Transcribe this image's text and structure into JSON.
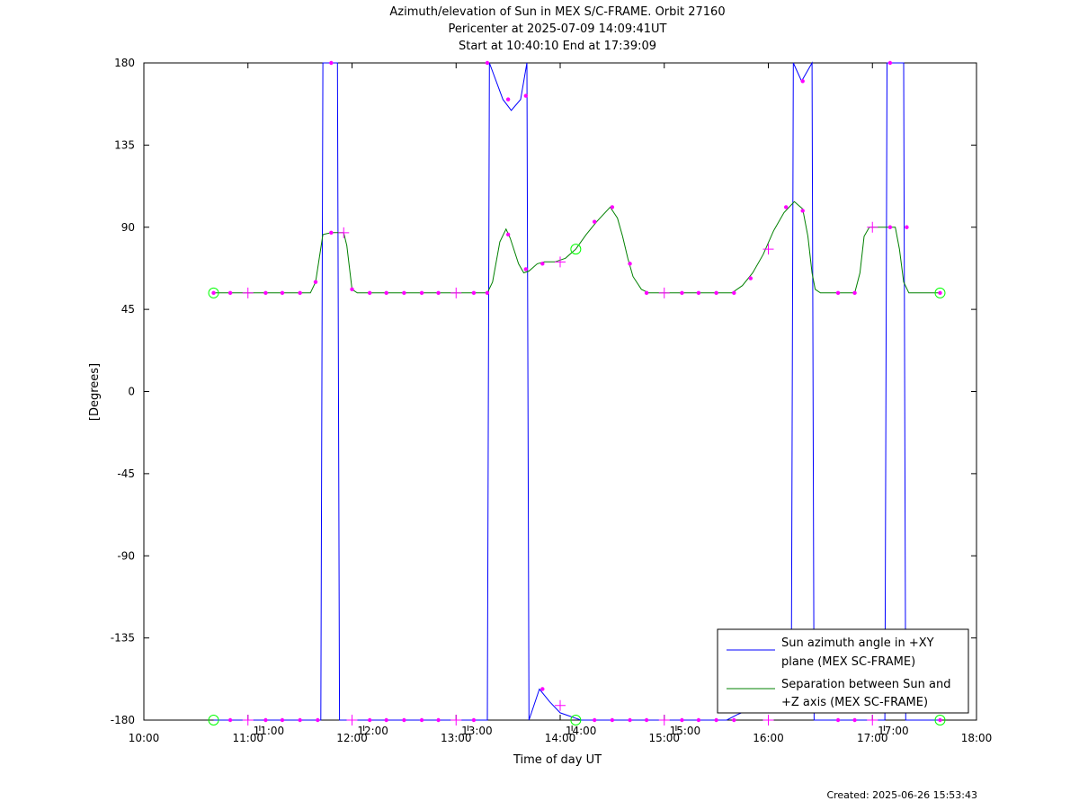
{
  "chart_data": {
    "type": "line",
    "title_lines": [
      "Azimuth/elevation of Sun in MEX S/C-FRAME.  Orbit 27160",
      "Pericenter at 2025-07-09 14:09:41UT",
      "Start at 10:40:10 End at 17:39:09"
    ],
    "xlabel": "Time of day UT",
    "ylabel": "[Degrees]",
    "xlim": [
      10,
      18
    ],
    "ylim": [
      -180,
      180
    ],
    "x_ticks": [
      10,
      11,
      12,
      13,
      14,
      15,
      16,
      17,
      18
    ],
    "x_tick_labels": [
      "10:00",
      "11:00",
      "12:00",
      "13:00",
      "14:00",
      "15:00",
      "16:00",
      "17:00",
      "18:00"
    ],
    "y_ticks": [
      180,
      135,
      90,
      45,
      0,
      -45,
      -90,
      -135,
      -180
    ],
    "y_tick_labels": [
      "180",
      "135",
      "90",
      "45",
      "0",
      "-45",
      "-90",
      "-135",
      "-180"
    ],
    "inner_hour_labels": [
      {
        "x": 11.2,
        "text": "11:00"
      },
      {
        "x": 12.2,
        "text": "12:00"
      },
      {
        "x": 13.2,
        "text": "13:00"
      },
      {
        "x": 14.2,
        "text": "14:00"
      },
      {
        "x": 15.2,
        "text": "15:00"
      },
      {
        "x": 17.2,
        "text": "17:00"
      }
    ],
    "created": "Created: 2025-06-26 15:53:43",
    "series": [
      {
        "name_lines": [
          "Sun azimuth angle in +XY",
          "plane (MEX SC-FRAME)"
        ],
        "color": "#0000ff",
        "points": [
          [
            10.67,
            -180
          ],
          [
            11.7,
            -180
          ],
          [
            11.72,
            180
          ],
          [
            11.86,
            180
          ],
          [
            11.88,
            -180
          ],
          [
            13.3,
            -180
          ],
          [
            13.32,
            180
          ],
          [
            13.45,
            160
          ],
          [
            13.53,
            154
          ],
          [
            13.62,
            160
          ],
          [
            13.68,
            180
          ],
          [
            13.7,
            -180
          ],
          [
            13.8,
            -163
          ],
          [
            13.9,
            -170
          ],
          [
            14.0,
            -176
          ],
          [
            14.2,
            -180
          ],
          [
            15.6,
            -180
          ],
          [
            15.7,
            -177
          ],
          [
            16.0,
            -170
          ],
          [
            16.22,
            -170
          ],
          [
            16.24,
            180
          ],
          [
            16.32,
            170
          ],
          [
            16.42,
            180
          ],
          [
            16.44,
            -180
          ],
          [
            17.12,
            -180
          ],
          [
            17.14,
            180
          ],
          [
            17.3,
            180
          ],
          [
            17.32,
            -180
          ],
          [
            17.65,
            -180
          ]
        ]
      },
      {
        "name_lines": [
          "Separation between Sun and",
          "+Z axis (MEX SC-FRAME)"
        ],
        "color": "#008000",
        "points": [
          [
            10.67,
            54
          ],
          [
            11.6,
            54
          ],
          [
            11.65,
            60
          ],
          [
            11.72,
            86
          ],
          [
            11.8,
            87
          ],
          [
            11.92,
            87
          ],
          [
            11.95,
            80
          ],
          [
            12.0,
            56
          ],
          [
            12.05,
            54
          ],
          [
            13.3,
            54
          ],
          [
            13.35,
            60
          ],
          [
            13.42,
            82
          ],
          [
            13.48,
            89
          ],
          [
            13.52,
            84
          ],
          [
            13.6,
            70
          ],
          [
            13.65,
            65
          ],
          [
            13.7,
            66
          ],
          [
            13.78,
            70
          ],
          [
            13.85,
            71
          ],
          [
            13.95,
            71
          ],
          [
            14.05,
            73
          ],
          [
            14.15,
            78
          ],
          [
            14.25,
            86
          ],
          [
            14.35,
            93
          ],
          [
            14.48,
            101
          ],
          [
            14.55,
            95
          ],
          [
            14.6,
            85
          ],
          [
            14.65,
            73
          ],
          [
            14.7,
            63
          ],
          [
            14.78,
            56
          ],
          [
            14.85,
            54
          ],
          [
            15.65,
            54
          ],
          [
            15.75,
            58
          ],
          [
            15.85,
            65
          ],
          [
            15.95,
            75
          ],
          [
            16.05,
            88
          ],
          [
            16.15,
            98
          ],
          [
            16.25,
            104
          ],
          [
            16.33,
            100
          ],
          [
            16.38,
            85
          ],
          [
            16.42,
            65
          ],
          [
            16.45,
            56
          ],
          [
            16.5,
            54
          ],
          [
            16.83,
            54
          ],
          [
            16.88,
            65
          ],
          [
            16.92,
            85
          ],
          [
            16.97,
            90
          ],
          [
            17.22,
            90
          ],
          [
            17.26,
            78
          ],
          [
            17.3,
            60
          ],
          [
            17.35,
            54
          ],
          [
            17.65,
            54
          ]
        ]
      }
    ],
    "markers": {
      "color": "#ff00ff",
      "dots": [
        [
          10.67,
          54
        ],
        [
          10.83,
          54
        ],
        [
          11.17,
          54
        ],
        [
          11.33,
          54
        ],
        [
          11.5,
          54
        ],
        [
          11.65,
          60
        ],
        [
          11.8,
          87
        ],
        [
          12.0,
          56
        ],
        [
          12.17,
          54
        ],
        [
          12.33,
          54
        ],
        [
          12.5,
          54
        ],
        [
          12.67,
          54
        ],
        [
          12.83,
          54
        ],
        [
          13.17,
          54
        ],
        [
          13.3,
          54
        ],
        [
          13.5,
          86
        ],
        [
          13.67,
          67
        ],
        [
          13.83,
          70
        ],
        [
          14.33,
          93
        ],
        [
          14.5,
          101
        ],
        [
          14.67,
          70
        ],
        [
          14.83,
          54
        ],
        [
          15.17,
          54
        ],
        [
          15.33,
          54
        ],
        [
          15.5,
          54
        ],
        [
          15.67,
          54
        ],
        [
          15.83,
          62
        ],
        [
          16.17,
          101
        ],
        [
          16.33,
          99
        ],
        [
          16.67,
          54
        ],
        [
          16.83,
          54
        ],
        [
          17.17,
          90
        ],
        [
          17.33,
          90
        ],
        [
          17.65,
          54
        ],
        [
          10.83,
          -180
        ],
        [
          11.17,
          -180
        ],
        [
          11.33,
          -180
        ],
        [
          11.5,
          -180
        ],
        [
          11.67,
          -180
        ],
        [
          11.8,
          180
        ],
        [
          12.17,
          -180
        ],
        [
          12.33,
          -180
        ],
        [
          12.5,
          -180
        ],
        [
          12.67,
          -180
        ],
        [
          12.83,
          -180
        ],
        [
          13.17,
          -180
        ],
        [
          13.3,
          180
        ],
        [
          13.5,
          160
        ],
        [
          13.67,
          162
        ],
        [
          13.83,
          -163
        ],
        [
          14.33,
          -180
        ],
        [
          14.5,
          -180
        ],
        [
          14.67,
          -180
        ],
        [
          14.83,
          -180
        ],
        [
          15.17,
          -180
        ],
        [
          15.33,
          -180
        ],
        [
          15.5,
          -180
        ],
        [
          15.67,
          -180
        ],
        [
          16.33,
          170
        ],
        [
          16.67,
          -180
        ],
        [
          16.83,
          -180
        ],
        [
          17.17,
          180
        ],
        [
          17.65,
          -180
        ]
      ],
      "crosses": [
        [
          11.0,
          54
        ],
        [
          11.92,
          87
        ],
        [
          13.0,
          54
        ],
        [
          14.0,
          71
        ],
        [
          15.0,
          54
        ],
        [
          16.0,
          78
        ],
        [
          17.0,
          90
        ],
        [
          11.0,
          -180
        ],
        [
          12.0,
          -180
        ],
        [
          13.0,
          -180
        ],
        [
          14.0,
          -172
        ],
        [
          15.0,
          -180
        ],
        [
          16.0,
          -180
        ],
        [
          17.0,
          -180
        ]
      ]
    },
    "circles": {
      "color": "#00ff00",
      "points": [
        [
          10.67,
          54
        ],
        [
          10.67,
          -180
        ],
        [
          14.15,
          78
        ],
        [
          14.15,
          -180
        ],
        [
          17.65,
          54
        ],
        [
          17.65,
          -180
        ]
      ]
    },
    "legend_position": "bottom-right",
    "grid": false
  }
}
